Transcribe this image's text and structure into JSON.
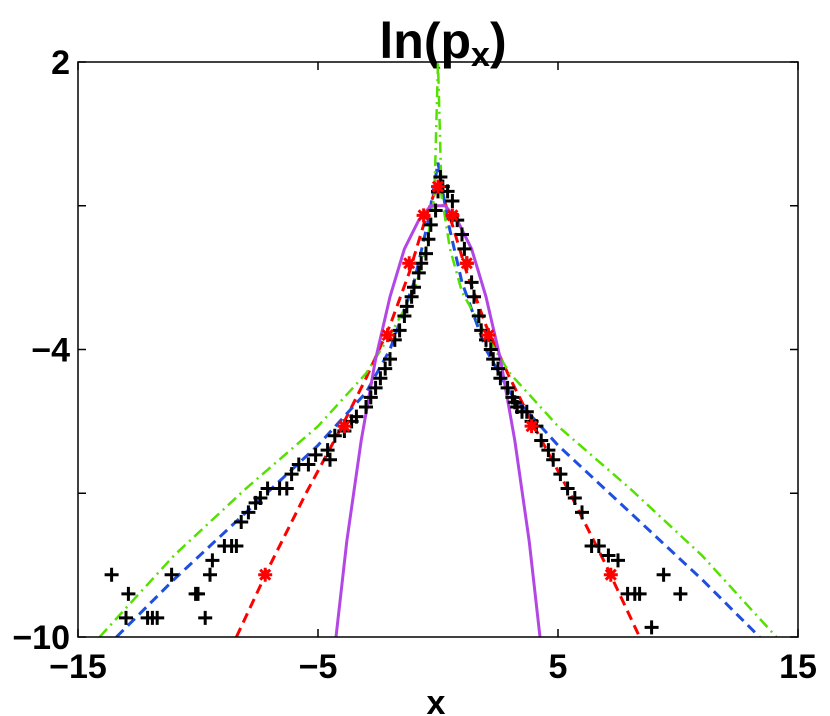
{
  "chart_data": {
    "type": "line",
    "title": "ln(p_x)",
    "title_main": "ln(p",
    "title_sub": "x",
    "title_close": ")",
    "xlabel": "x",
    "ylabel": "",
    "xlim": [
      -15,
      15
    ],
    "ylim": [
      -10,
      2
    ],
    "xticks": [
      -15,
      -5,
      5,
      15
    ],
    "xtick_labels": [
      "−15",
      "−5",
      "5",
      "15"
    ],
    "yticks": [
      -10,
      -4,
      2
    ],
    "ytick_labels": [
      "−10",
      "−4",
      "2"
    ],
    "minor_yticks": [
      -7,
      -1
    ],
    "grid": false,
    "legend": "none",
    "series": [
      {
        "style": "plus-markers",
        "color": "#000000",
        "points": [
          [
            -13.6,
            -8.7
          ],
          [
            -12.9,
            -9.1
          ],
          [
            -13.0,
            -9.6
          ],
          [
            -12.1,
            -9.6
          ],
          [
            -11.9,
            -9.6
          ],
          [
            -11.7,
            -9.6
          ],
          [
            -11.1,
            -8.7
          ],
          [
            -10.1,
            -9.1
          ],
          [
            -10.0,
            -9.1
          ],
          [
            -9.7,
            -9.6
          ],
          [
            -9.5,
            -8.7
          ],
          [
            -9.4,
            -8.4
          ],
          [
            -8.9,
            -8.1
          ],
          [
            -8.6,
            -8.1
          ],
          [
            -8.4,
            -8.1
          ],
          [
            -8.2,
            -7.6
          ],
          [
            -7.9,
            -7.4
          ],
          [
            -7.6,
            -7.2
          ],
          [
            -7.4,
            -7.1
          ],
          [
            -7.1,
            -6.9
          ],
          [
            -6.6,
            -6.9
          ],
          [
            -6.3,
            -6.9
          ],
          [
            -6.1,
            -6.6
          ],
          [
            -5.8,
            -6.4
          ],
          [
            -5.4,
            -6.4
          ],
          [
            -5.1,
            -6.2
          ],
          [
            -4.6,
            -6.1
          ],
          [
            -4.5,
            -6.3
          ],
          [
            -4.3,
            -5.8
          ],
          [
            -3.9,
            -5.7
          ],
          [
            -3.6,
            -5.5
          ],
          [
            -3.4,
            -5.4
          ],
          [
            -3.0,
            -5.2
          ],
          [
            -2.8,
            -5.0
          ],
          [
            -2.6,
            -4.8
          ],
          [
            -2.4,
            -4.6
          ],
          [
            -2.2,
            -4.4
          ],
          [
            -2.0,
            -4.2
          ],
          [
            -1.8,
            -3.8
          ],
          [
            -1.6,
            -3.6
          ],
          [
            -1.4,
            -3.3
          ],
          [
            -1.3,
            -3.1
          ],
          [
            -1.1,
            -2.9
          ],
          [
            -1.0,
            -2.7
          ],
          [
            -0.8,
            -2.4
          ],
          [
            -0.7,
            -2.2
          ],
          [
            -0.5,
            -2.0
          ],
          [
            -0.4,
            -1.7
          ],
          [
            -0.3,
            -1.4
          ],
          [
            -0.1,
            -1.1
          ],
          [
            0.0,
            -0.7
          ],
          [
            0.1,
            -0.4
          ],
          [
            0.2,
            -0.6
          ],
          [
            0.4,
            -0.7
          ],
          [
            0.6,
            -0.9
          ],
          [
            0.8,
            -1.3
          ],
          [
            1.0,
            -1.6
          ],
          [
            1.1,
            -1.9
          ],
          [
            1.2,
            -2.2
          ],
          [
            1.4,
            -2.6
          ],
          [
            1.5,
            -2.9
          ],
          [
            1.7,
            -3.3
          ],
          [
            1.8,
            -3.6
          ],
          [
            2.0,
            -3.8
          ],
          [
            2.2,
            -4.0
          ],
          [
            2.3,
            -4.2
          ],
          [
            2.5,
            -4.4
          ],
          [
            2.6,
            -4.6
          ],
          [
            2.9,
            -4.8
          ],
          [
            3.1,
            -5.0
          ],
          [
            3.2,
            -5.1
          ],
          [
            3.3,
            -5.2
          ],
          [
            3.5,
            -5.3
          ],
          [
            3.7,
            -5.3
          ],
          [
            3.9,
            -5.5
          ],
          [
            4.1,
            -5.6
          ],
          [
            4.3,
            -5.9
          ],
          [
            4.6,
            -6.1
          ],
          [
            4.8,
            -6.3
          ],
          [
            5.1,
            -6.6
          ],
          [
            5.4,
            -6.9
          ],
          [
            5.7,
            -7.1
          ],
          [
            6.0,
            -7.4
          ],
          [
            6.4,
            -8.1
          ],
          [
            6.7,
            -8.1
          ],
          [
            7.1,
            -8.3
          ],
          [
            7.5,
            -8.4
          ],
          [
            7.9,
            -9.1
          ],
          [
            8.2,
            -9.1
          ],
          [
            8.4,
            -9.1
          ],
          [
            8.9,
            -9.8
          ],
          [
            9.4,
            -8.7
          ],
          [
            10.1,
            -9.1
          ]
        ]
      },
      {
        "style": "asterisk-markers",
        "color": "#ff0000",
        "points": [
          [
            -7.2,
            -8.7
          ],
          [
            -3.9,
            -5.6
          ],
          [
            -2.1,
            -3.7
          ],
          [
            -1.2,
            -2.2
          ],
          [
            -0.6,
            -1.2
          ],
          [
            0.0,
            -0.6
          ],
          [
            0.6,
            -1.2
          ],
          [
            1.2,
            -2.2
          ],
          [
            2.1,
            -3.7
          ],
          [
            3.9,
            -5.6
          ],
          [
            7.2,
            -8.7
          ]
        ]
      },
      {
        "style": "dashed",
        "color": "#ff0000",
        "points": [
          [
            -8.4,
            -10.0
          ],
          [
            -7.0,
            -8.5
          ],
          [
            -5.5,
            -7.0
          ],
          [
            -4.0,
            -5.6
          ],
          [
            -3.0,
            -4.6
          ],
          [
            -2.0,
            -3.5
          ],
          [
            -1.2,
            -2.4
          ],
          [
            -0.6,
            -1.4
          ],
          [
            -0.2,
            -0.8
          ],
          [
            0.0,
            -0.6
          ],
          [
            0.2,
            -0.8
          ],
          [
            0.6,
            -1.4
          ],
          [
            1.2,
            -2.4
          ],
          [
            2.0,
            -3.5
          ],
          [
            3.0,
            -4.6
          ],
          [
            4.0,
            -5.6
          ],
          [
            5.5,
            -7.0
          ],
          [
            7.0,
            -8.5
          ],
          [
            8.4,
            -10.0
          ]
        ]
      },
      {
        "style": "dashed",
        "color": "#1f4fe0",
        "points": [
          [
            -13.4,
            -10.0
          ],
          [
            -11.0,
            -8.8
          ],
          [
            -8.0,
            -7.4
          ],
          [
            -5.0,
            -6.0
          ],
          [
            -3.0,
            -4.9
          ],
          [
            -2.0,
            -4.0
          ],
          [
            -1.0,
            -2.6
          ],
          [
            -0.4,
            -1.3
          ],
          [
            0.0,
            -0.1
          ],
          [
            0.4,
            -1.3
          ],
          [
            1.0,
            -2.6
          ],
          [
            2.0,
            -4.0
          ],
          [
            3.0,
            -4.9
          ],
          [
            5.0,
            -6.0
          ],
          [
            8.0,
            -7.4
          ],
          [
            11.0,
            -8.8
          ],
          [
            13.4,
            -10.0
          ]
        ]
      },
      {
        "style": "dash-dot",
        "color": "#55e000",
        "points": [
          [
            -14.1,
            -10.0
          ],
          [
            -11.0,
            -8.3
          ],
          [
            -8.0,
            -6.9
          ],
          [
            -5.0,
            -5.6
          ],
          [
            -3.0,
            -4.5
          ],
          [
            -2.0,
            -3.7
          ],
          [
            -1.0,
            -2.8
          ],
          [
            -0.5,
            -1.9
          ],
          [
            -0.15,
            -0.8
          ],
          [
            0.0,
            2.0
          ],
          [
            0.15,
            -0.8
          ],
          [
            0.5,
            -1.9
          ],
          [
            1.0,
            -2.8
          ],
          [
            2.0,
            -3.7
          ],
          [
            3.0,
            -4.5
          ],
          [
            5.0,
            -5.6
          ],
          [
            8.0,
            -6.9
          ],
          [
            11.0,
            -8.3
          ],
          [
            14.1,
            -10.0
          ]
        ]
      },
      {
        "style": "solid",
        "color": "#b347e6",
        "points": [
          [
            -4.25,
            -10.0
          ],
          [
            -3.8,
            -8.0
          ],
          [
            -3.2,
            -5.9
          ],
          [
            -2.6,
            -4.2
          ],
          [
            -2.0,
            -2.9
          ],
          [
            -1.4,
            -1.9
          ],
          [
            -0.8,
            -1.3
          ],
          [
            -0.3,
            -1.0
          ],
          [
            0.0,
            -1.0
          ],
          [
            0.3,
            -1.0
          ],
          [
            0.8,
            -1.3
          ],
          [
            1.4,
            -1.9
          ],
          [
            2.0,
            -2.9
          ],
          [
            2.6,
            -4.2
          ],
          [
            3.2,
            -5.9
          ],
          [
            3.8,
            -8.0
          ],
          [
            4.25,
            -10.0
          ]
        ]
      }
    ]
  }
}
